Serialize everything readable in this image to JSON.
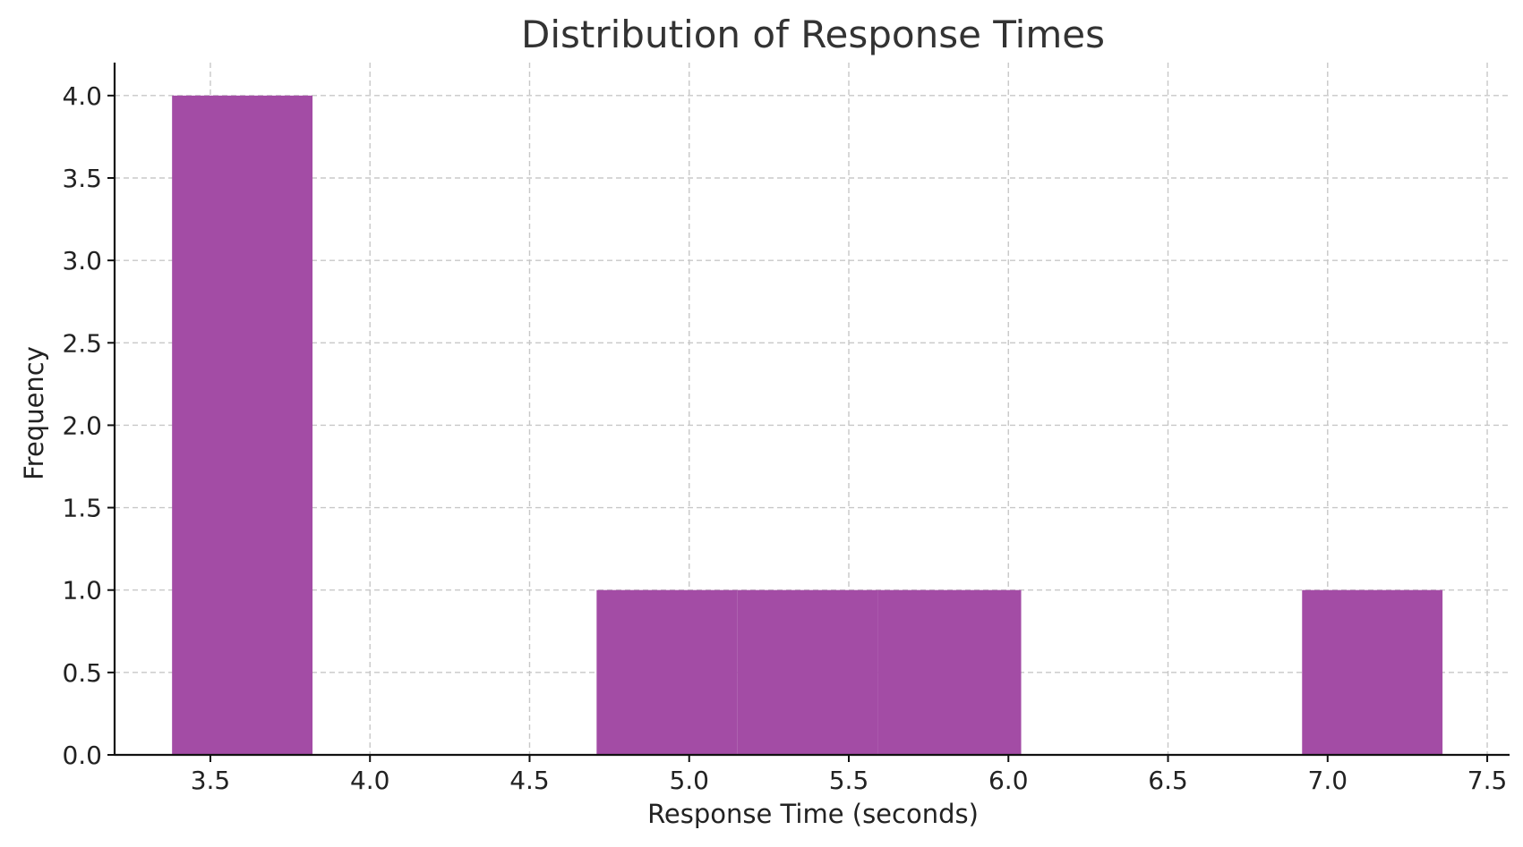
{
  "chart_data": {
    "type": "bar",
    "title": "Distribution of Response Times",
    "xlabel": "Response Time (seconds)",
    "ylabel": "Frequency",
    "xlim": [
      3.2,
      7.57
    ],
    "ylim": [
      0,
      4.2
    ],
    "xticks": [
      3.5,
      4.0,
      4.5,
      5.0,
      5.5,
      6.0,
      6.5,
      7.0,
      7.5
    ],
    "xtick_labels": [
      "3.5",
      "4.0",
      "4.5",
      "5.0",
      "5.5",
      "6.0",
      "6.5",
      "7.0",
      "7.5"
    ],
    "yticks": [
      0.0,
      0.5,
      1.0,
      1.5,
      2.0,
      2.5,
      3.0,
      3.5,
      4.0
    ],
    "ytick_labels": [
      "0.0",
      "0.5",
      "1.0",
      "1.5",
      "2.0",
      "2.5",
      "3.0",
      "3.5",
      "4.0"
    ],
    "bins": [
      {
        "x0": 3.38,
        "x1": 3.82,
        "count": 4
      },
      {
        "x0": 3.82,
        "x1": 4.27,
        "count": 0
      },
      {
        "x0": 4.27,
        "x1": 4.71,
        "count": 0
      },
      {
        "x0": 4.71,
        "x1": 5.15,
        "count": 1
      },
      {
        "x0": 5.15,
        "x1": 5.59,
        "count": 1
      },
      {
        "x0": 5.59,
        "x1": 6.04,
        "count": 1
      },
      {
        "x0": 6.04,
        "x1": 6.48,
        "count": 0
      },
      {
        "x0": 6.48,
        "x1": 6.92,
        "count": 0
      },
      {
        "x0": 6.92,
        "x1": 7.36,
        "count": 1
      }
    ],
    "bar_color": "#a34ca5",
    "grid": true
  }
}
